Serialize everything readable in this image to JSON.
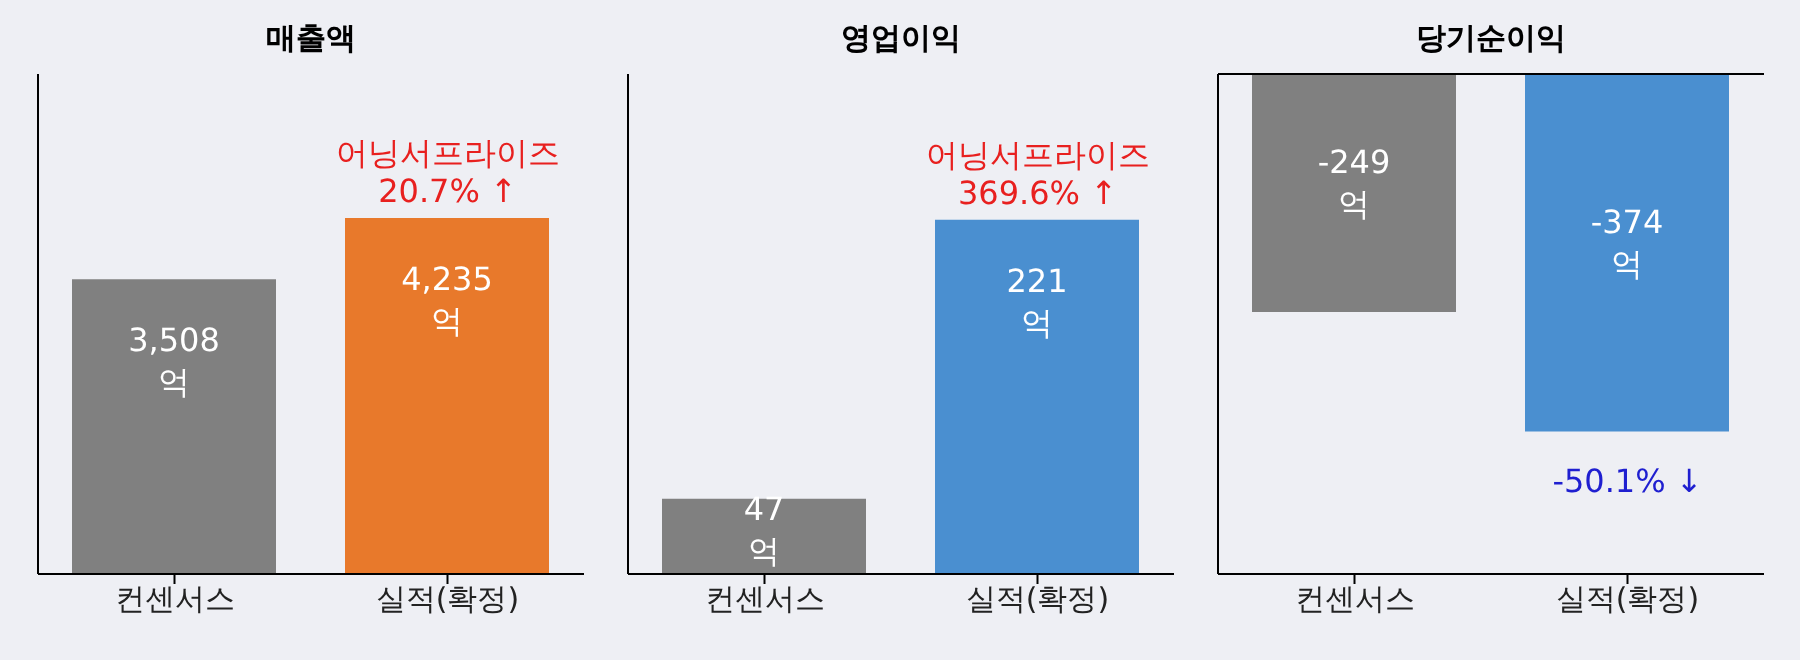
{
  "chart_data": [
    {
      "type": "bar",
      "title": "매출액",
      "categories": [
        "컨센서스",
        "실적(확정)"
      ],
      "values": [
        3508,
        4235
      ],
      "colors": [
        "#808080",
        "#e8792b"
      ],
      "value_labels": [
        "3,508 억",
        "4,235 억"
      ],
      "ylim": [
        0,
        5950
      ],
      "tick_labels": "x",
      "annotations": [
        {
          "text": "어닝서프라이즈\n20.7% ↑",
          "x": "실적(확정)",
          "y": 4235
        }
      ]
    },
    {
      "type": "bar",
      "title": "영업이익",
      "categories": [
        "컨센서스",
        "실적(확정)"
      ],
      "values": [
        47,
        221
      ],
      "colors": [
        "#808080",
        "#4a8fd0"
      ],
      "value_labels": [
        "47 억",
        "221 억"
      ],
      "ylim": [
        0,
        312
      ],
      "tick_labels": "x",
      "annotations": [
        {
          "text": "어닝서프라이즈\n369.6% ↑",
          "x": "실적(확정)",
          "y": 221
        }
      ]
    },
    {
      "type": "bar",
      "title": "당기순이익",
      "categories": [
        "컨센서스",
        "실적(확정)"
      ],
      "values": [
        -249,
        -374
      ],
      "colors": [
        "#808080",
        "#4a8fd0"
      ],
      "value_labels": [
        "-249 억",
        "-374 억"
      ],
      "ylim": [
        -523,
        0
      ],
      "tick_labels": "x",
      "ref_lines": [
        {
          "axis": "y",
          "value": 0,
          "color": "#000000"
        }
      ],
      "annotations": [
        {
          "text": "-50.1% ↓",
          "x": "실적(확정)",
          "y": -374
        }
      ]
    }
  ]
}
